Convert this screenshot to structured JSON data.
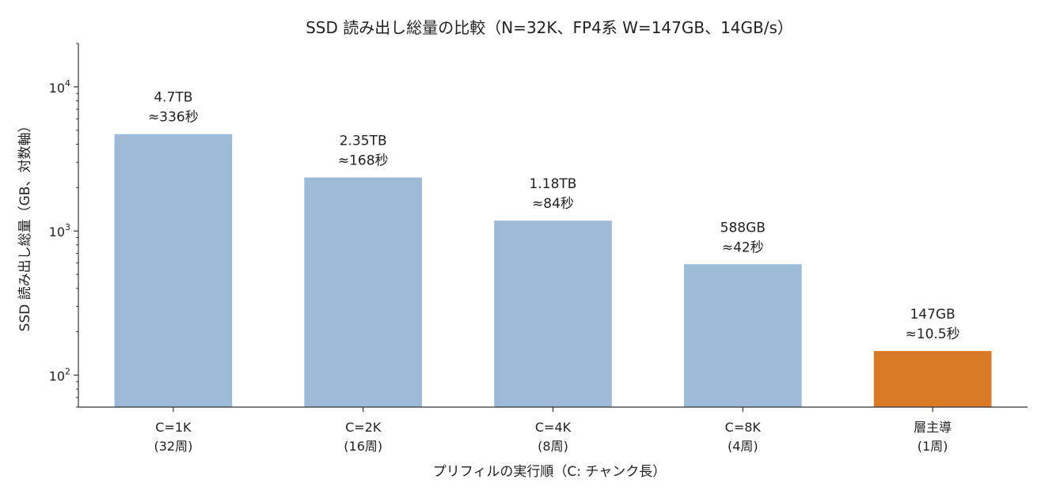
{
  "chart_data": {
    "type": "bar",
    "title": "SSD 読み出し総量の比較（N=32K、FP4系 W=147GB、14GB/s）",
    "xlabel": "プリフィルの実行順（C: チャンク長）",
    "ylabel": "SSD 読み出し総量（GB、対数軸）",
    "yscale": "log",
    "ylim": [
      60,
      20000
    ],
    "yticks": [
      {
        "base": "10",
        "exp": "2",
        "value": 100
      },
      {
        "base": "10",
        "exp": "3",
        "value": 1000
      },
      {
        "base": "10",
        "exp": "4",
        "value": 10000
      }
    ],
    "categories": [
      {
        "line1": "C=1K",
        "line2": "(32周)"
      },
      {
        "line1": "C=2K",
        "line2": "(16周)"
      },
      {
        "line1": "C=4K",
        "line2": "(8周)"
      },
      {
        "line1": "C=8K",
        "line2": "(4周)"
      },
      {
        "line1": "層主導",
        "line2": "(1周)"
      }
    ],
    "values": [
      4700,
      2350,
      1180,
      588,
      147
    ],
    "labels": [
      {
        "size": "4.7TB",
        "time": "≈336秒"
      },
      {
        "size": "2.35TB",
        "time": "≈168秒"
      },
      {
        "size": "1.18TB",
        "time": "≈84秒"
      },
      {
        "size": "588GB",
        "time": "≈42秒"
      },
      {
        "size": "147GB",
        "time": "≈10.5秒"
      }
    ],
    "colors": [
      "#9dbad7",
      "#9dbad7",
      "#9dbad7",
      "#9dbad7",
      "#d97a28"
    ],
    "grid": false,
    "legend": false
  }
}
